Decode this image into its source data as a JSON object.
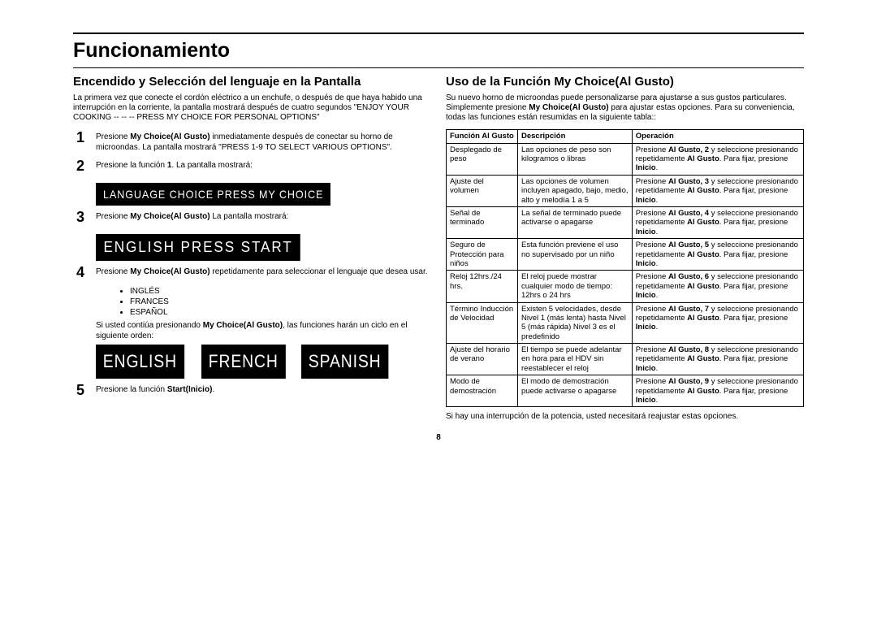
{
  "page_number": "8",
  "main_title": "Funcionamiento",
  "left": {
    "title": "Encendido y Selección del lenguaje en la Pantalla",
    "intro": "La primera vez que conecte el cordón eléctrico a un enchufe, o después de que haya habido una interrupción en la corriente, la pantalla mostrará después de cuatro segundos \"ENJOY YOUR COOKING -- -- -- PRESS MY CHOICE FOR PERSONAL OPTIONS\"",
    "step1_prefix": "Presione ",
    "step1_bold": "My Choice(Al Gusto)",
    "step1_suffix": " inmediatamente después de conectar su horno de microondas. La pantalla mostrará \"PRESS 1-9 TO SELECT VARIOUS OPTIONS\".",
    "step2_prefix": "Presione  la función ",
    "step2_bold": "1",
    "step2_suffix": ". La pantalla mostrará:",
    "display1": "LANGUAGE CHOICE PRESS MY CHOICE",
    "step3_prefix": "Presione ",
    "step3_bold": "My Choice(Al Gusto)",
    "step3_suffix": " La pantalla mostrará:",
    "display2": "ENGLISH PRESS START",
    "step4_prefix": "Presione ",
    "step4_bold": "My Choice(Al Gusto)",
    "step4_suffix": " repetidamente para seleccionar el lenguaje que desea usar.",
    "lang_opts": [
      "INGLÉS",
      "FRANCES",
      "ESPAÑOL"
    ],
    "step4_note_prefix": "Si usted contiúa presionando ",
    "step4_note_bold": "My Choice(Al Gusto)",
    "step4_note_suffix": ", las funciones harán un ciclo  en el siguiente orden:",
    "chips": [
      "ENGLISH",
      "FRENCH",
      "SPANISH"
    ],
    "step5_prefix": "Presione la función ",
    "step5_bold": "Start(Inicio)",
    "step5_suffix": "."
  },
  "right": {
    "title": "Uso de la Función My Choice(Al Gusto)",
    "intro_prefix": "Su nuevo horno de microondas puede personalizarse para ajustarse a sus gustos particulares. Simplemente presione ",
    "intro_bold": "My Choice(Al Gusto)",
    "intro_suffix": " para ajustar estas opciones. Para su conveniencia, todas las funciones están resumidas en la siguiente tabla::",
    "headers": [
      "Función Al Gusto",
      "Descripción",
      "Operación"
    ],
    "rows": [
      {
        "f": "Desplegado de peso",
        "d": "Las opciones de peso son kilogramos o libras",
        "n": "2"
      },
      {
        "f": "Ajuste del volumen",
        "d": "Las opciones de volumen incluyen apagado, bajo, medio, alto y melodía 1 a 5",
        "n": "3"
      },
      {
        "f": "Señal de terminado",
        "d": "La señal de terminado puede activarse o apagarse",
        "n": "4"
      },
      {
        "f": "Seguro de Protección para niños",
        "d": "Esta función previene el uso no supervisado por un niño",
        "n": "5"
      },
      {
        "f": "Reloj 12hrs./24 hrs.",
        "d": "El reloj puede mostrar cualquier modo de tiempo: 12hrs o 24 hrs",
        "n": "6"
      },
      {
        "f": "Término Inducción de Velocidad",
        "d": "Existen 5 velocidades, desde Nivel 1 (más lenta) hasta Nivel 5 (más rápida) Nivel 3 es el predefinido",
        "n": "7"
      },
      {
        "f": "Ajuste del horario de verano",
        "d": "El tiempo se puede adelantar en hora para el HDV sin reestablecer el reloj",
        "n": "8"
      },
      {
        "f": "Modo de demostración",
        "d": "El modo de demostración puede activarse o apagarse",
        "n": "9"
      }
    ],
    "op_p1": "Presione ",
    "op_b1": "Al Gusto, ",
    "op_p2": " y seleccione presionando repetidamente ",
    "op_b2": "Al Gusto",
    "op_p3": ". Para fijar, presione ",
    "op_b3": "Inicio",
    "op_p4": ".",
    "footnote": "Si hay una interrupción de la potencia, usted necesitará reajustar estas opciones."
  }
}
